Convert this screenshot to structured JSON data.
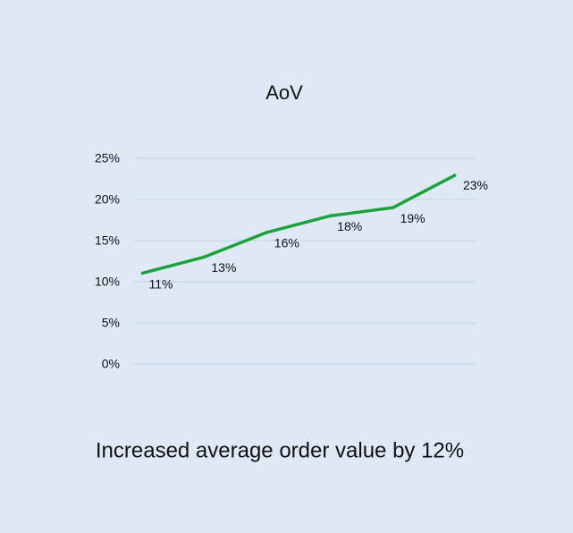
{
  "chart_data": {
    "type": "line",
    "title": "AoV",
    "values": [
      11,
      13,
      16,
      18,
      19,
      23
    ],
    "value_labels": [
      "11%",
      "13%",
      "16%",
      "18%",
      "19%",
      "23%"
    ],
    "color": "#1aa33a",
    "ylim": [
      0,
      25
    ],
    "yticks": [
      {
        "value": 0,
        "label": "0%"
      },
      {
        "value": 5,
        "label": "5%"
      },
      {
        "value": 10,
        "label": "10%"
      },
      {
        "value": 15,
        "label": "15%"
      },
      {
        "value": 20,
        "label": "20%"
      },
      {
        "value": 25,
        "label": "25%"
      }
    ],
    "grid": true,
    "caption": "Increased average order value by 12%"
  }
}
